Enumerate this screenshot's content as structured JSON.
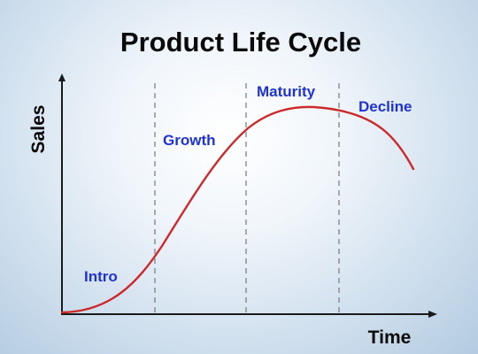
{
  "title": "Product Life Cycle",
  "y_axis_label": "Sales",
  "x_axis_label": "Time",
  "stages": [
    "Intro",
    "Growth",
    "Maturity",
    "Decline"
  ],
  "colors": {
    "curve": "#cc2a2a",
    "stage_text": "#1f32d6",
    "axis": "#1a1a1a",
    "divider": "#777777",
    "title_text": "#0a0a0a"
  }
}
